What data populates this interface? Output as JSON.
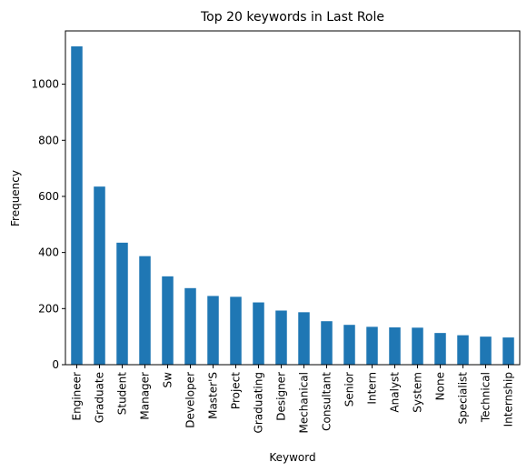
{
  "chart_data": {
    "type": "bar",
    "title": "Top 20 keywords in Last Role",
    "xlabel": "Keyword",
    "ylabel": "Frequency",
    "categories": [
      "Engineer",
      "Graduate",
      "Student",
      "Manager",
      "Sw",
      "Developer",
      "Master'S",
      "Project",
      "Graduating",
      "Designer",
      "Mechanical",
      "Consultant",
      "Senior",
      "Intern",
      "Analyst",
      "System",
      "None",
      "Specialist",
      "Technical",
      "Internship"
    ],
    "values": [
      1135,
      635,
      435,
      387,
      315,
      273,
      245,
      242,
      222,
      193,
      187,
      155,
      142,
      135,
      133,
      132,
      113,
      105,
      100,
      97
    ],
    "ylim": [
      0,
      1190
    ],
    "yticks": [
      0,
      200,
      400,
      600,
      800,
      1000
    ],
    "bar_color": "#1f77b4",
    "grid": false,
    "legend": false
  }
}
